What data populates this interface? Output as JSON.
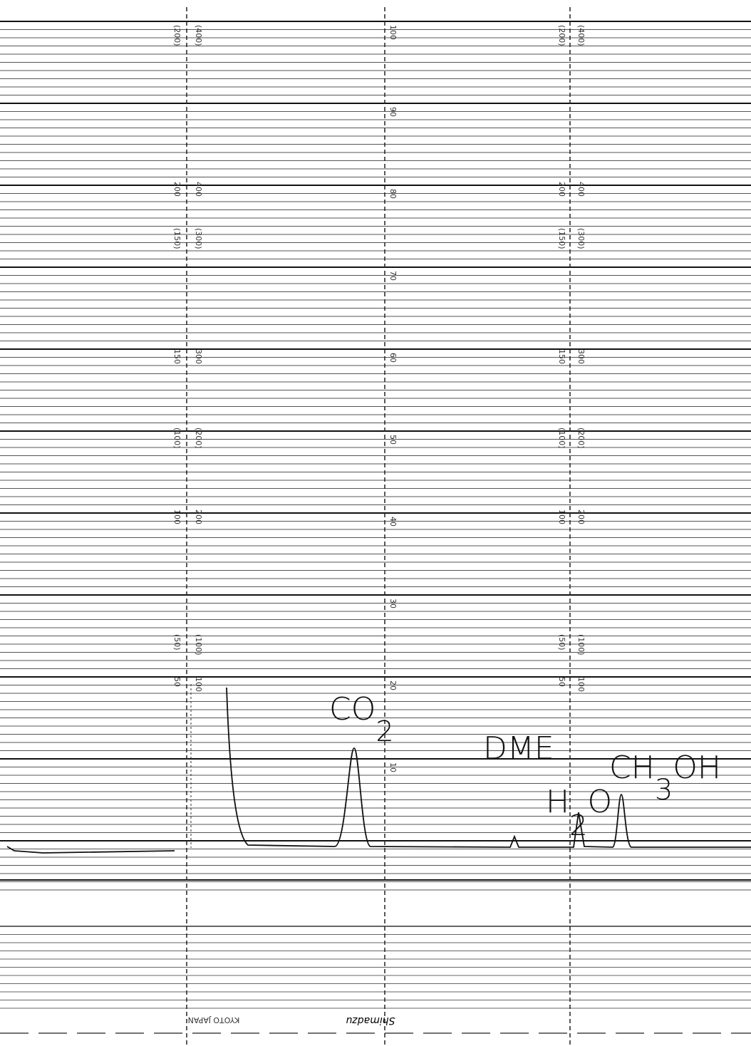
{
  "scale_center": [
    "100",
    "90",
    "80",
    "70",
    "60",
    "50",
    "40",
    "30",
    "20",
    "10"
  ],
  "scale_left": [
    "(200)",
    "200",
    "(150)",
    "150",
    "(100)",
    "100",
    "(50)",
    "50"
  ],
  "scale_right": [
    "(400)",
    "400",
    "(300)",
    "300",
    "(200)",
    "200",
    "(100)",
    "100"
  ],
  "peaks": [
    {
      "text": [
        "CO",
        "2"
      ]
    },
    {
      "text": [
        "DME"
      ]
    },
    {
      "text": [
        "H",
        "2",
        "O"
      ]
    },
    {
      "text": [
        "CH",
        "3",
        "OH"
      ]
    }
  ],
  "footer": {
    "maker": "KYOTO JAPAN",
    "brand": "Shimadzu"
  }
}
